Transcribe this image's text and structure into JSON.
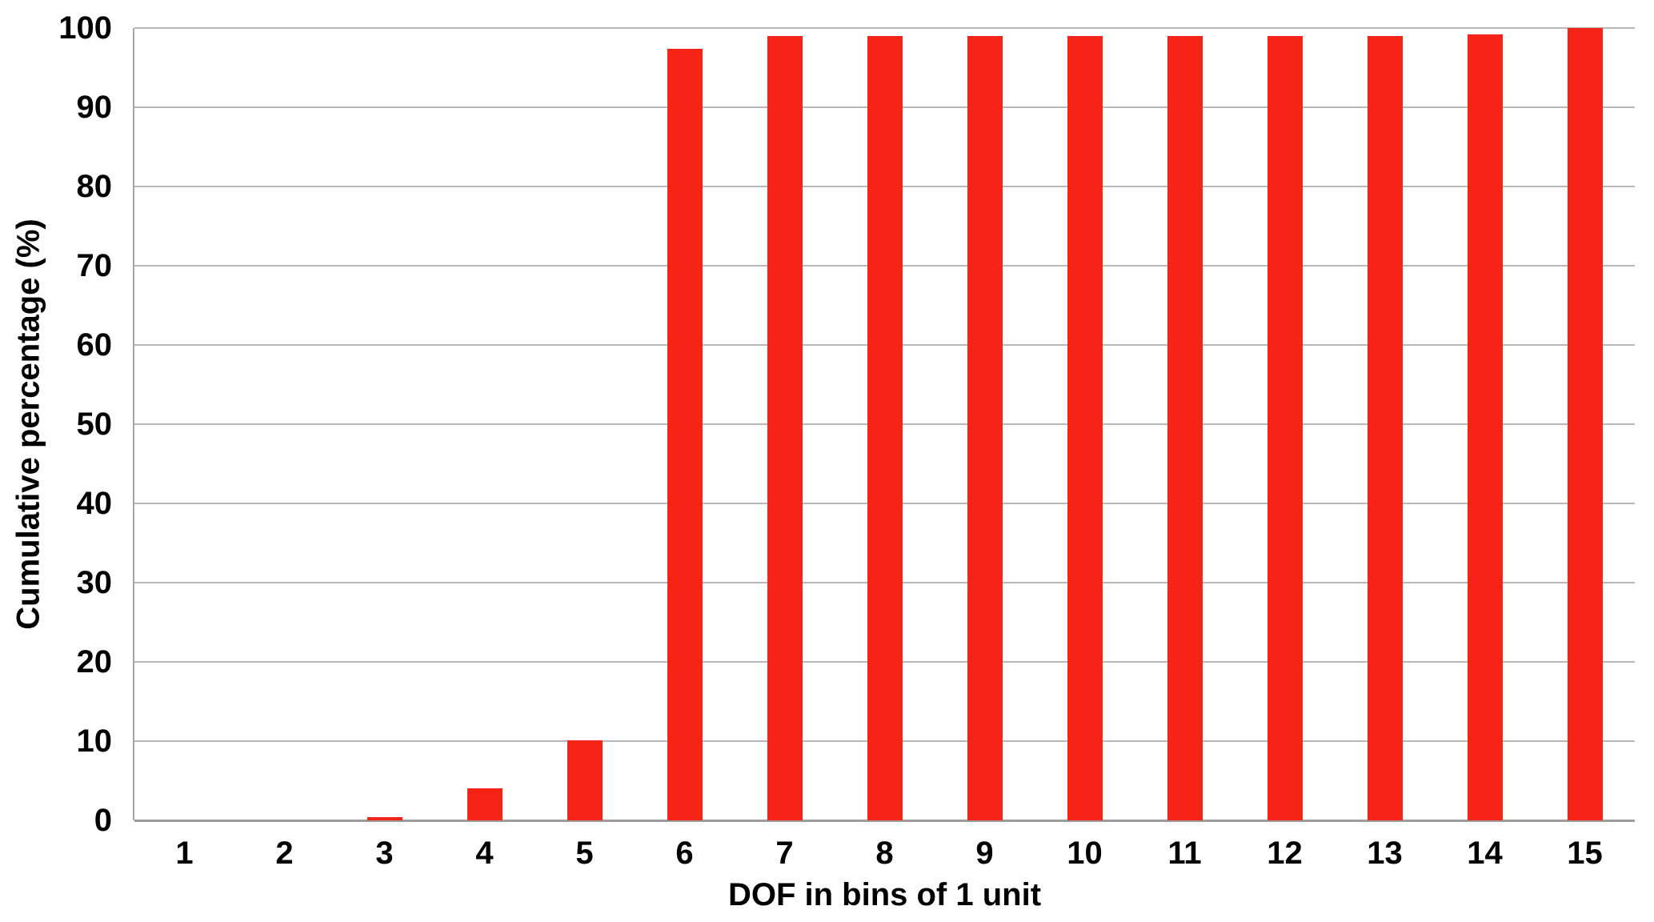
{
  "figure": {
    "background_color": "#ffffff",
    "text_color": "#000000"
  },
  "chart_data": {
    "type": "bar",
    "title": "",
    "categories": [
      "1",
      "2",
      "3",
      "4",
      "5",
      "6",
      "7",
      "8",
      "9",
      "10",
      "11",
      "12",
      "13",
      "14",
      "15"
    ],
    "values": [
      0,
      0,
      0.4,
      4,
      10.1,
      97.4,
      99,
      99,
      99,
      99,
      99,
      99,
      99,
      99.2,
      100
    ],
    "xlabel": "DOF in bins of 1 unit",
    "ylabel": "Cumulative percentage (%)",
    "ylim": [
      0,
      100
    ],
    "yticks": [
      0,
      10,
      20,
      30,
      40,
      50,
      60,
      70,
      80,
      90,
      100
    ],
    "grid": true,
    "legend": false,
    "bar_color": "#f52417",
    "gridline_color": "#b8b8b8",
    "axis_line_color": "#9b9b9b"
  }
}
